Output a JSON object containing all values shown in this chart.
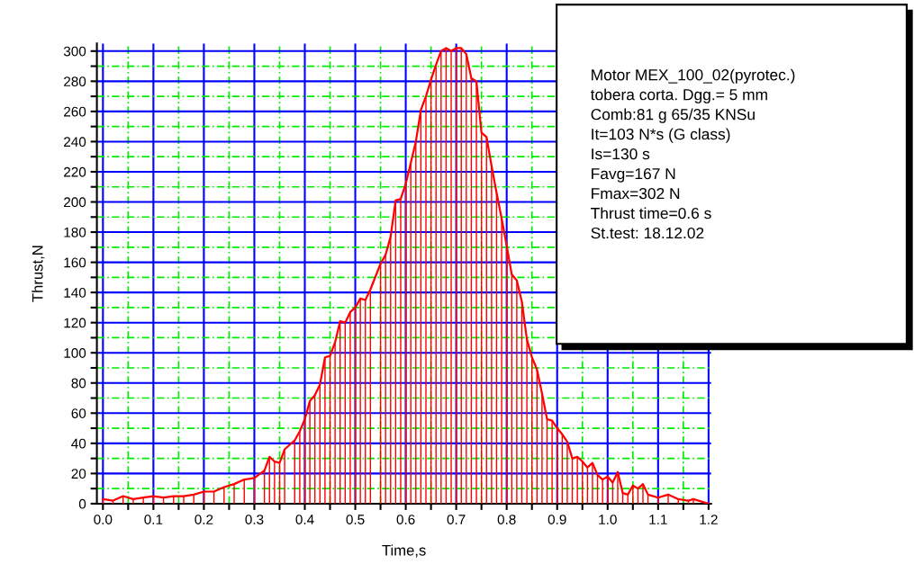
{
  "chart_data": {
    "type": "line",
    "xlabel": "Time,s",
    "ylabel": "Thrust,N",
    "x": [
      0.0,
      0.02,
      0.04,
      0.06,
      0.08,
      0.1,
      0.12,
      0.14,
      0.16,
      0.18,
      0.2,
      0.22,
      0.24,
      0.26,
      0.28,
      0.3,
      0.32,
      0.33,
      0.34,
      0.35,
      0.36,
      0.38,
      0.39,
      0.4,
      0.41,
      0.42,
      0.43,
      0.44,
      0.45,
      0.46,
      0.47,
      0.48,
      0.49,
      0.5,
      0.51,
      0.52,
      0.53,
      0.55,
      0.56,
      0.57,
      0.58,
      0.59,
      0.6,
      0.61,
      0.62,
      0.63,
      0.64,
      0.65,
      0.66,
      0.67,
      0.68,
      0.69,
      0.7,
      0.71,
      0.72,
      0.73,
      0.74,
      0.75,
      0.76,
      0.77,
      0.78,
      0.79,
      0.8,
      0.81,
      0.82,
      0.83,
      0.84,
      0.85,
      0.86,
      0.87,
      0.88,
      0.89,
      0.9,
      0.91,
      0.92,
      0.93,
      0.94,
      0.95,
      0.96,
      0.97,
      0.98,
      0.99,
      1.0,
      1.01,
      1.02,
      1.03,
      1.04,
      1.05,
      1.06,
      1.07,
      1.08,
      1.1,
      1.12,
      1.14,
      1.16,
      1.17,
      1.2
    ],
    "series": [
      {
        "color": "#ff0000",
        "values": [
          3,
          2,
          5,
          3,
          4,
          5,
          4,
          5,
          5,
          6,
          8,
          8,
          11,
          13,
          16,
          17,
          22,
          31,
          28,
          27,
          36,
          42,
          48,
          56,
          68,
          72,
          79,
          97,
          98,
          107,
          121,
          120,
          127,
          130,
          136,
          135,
          142,
          159,
          165,
          177,
          201,
          202,
          212,
          226,
          240,
          261,
          270,
          281,
          291,
          300,
          302,
          300,
          302,
          302,
          298,
          282,
          280,
          246,
          243,
          224,
          206,
          189,
          171,
          152,
          148,
          134,
          109,
          97,
          89,
          73,
          56,
          55,
          50,
          46,
          41,
          30,
          31,
          28,
          24,
          27,
          19,
          16,
          18,
          14,
          21,
          7,
          6,
          12,
          10,
          13,
          6,
          4,
          6,
          3,
          2,
          3,
          0
        ]
      },
      {
        "type": "bar",
        "color": "#ff0000",
        "values": [
          3,
          2,
          5,
          3,
          4,
          5,
          4,
          5,
          5,
          6,
          8,
          8,
          11,
          13,
          16,
          17,
          22,
          31,
          28,
          27,
          36,
          42,
          48,
          56,
          68,
          72,
          79,
          97,
          98,
          107,
          121,
          120,
          127,
          130,
          136,
          135,
          142,
          159,
          165,
          177,
          201,
          202,
          212,
          226,
          240,
          261,
          270,
          281,
          291,
          300,
          302,
          300,
          302,
          302,
          298,
          282,
          280,
          246,
          243,
          224,
          206,
          189,
          171,
          152,
          148,
          134,
          109,
          97,
          89,
          73,
          56,
          55,
          50,
          46,
          41,
          30,
          31,
          28,
          24,
          27,
          19,
          16,
          18,
          14,
          21,
          7,
          6,
          12,
          10,
          13,
          6,
          4,
          6,
          3,
          2,
          3,
          0
        ]
      }
    ],
    "marker": "none",
    "line_style": "solid",
    "grid": true,
    "xlim": [
      -0.012,
      1.205
    ],
    "ylim": [
      0,
      305
    ],
    "xticks": [
      {
        "value": 0.0,
        "label": "0.0"
      },
      {
        "value": 0.05,
        "label": null
      },
      {
        "value": 0.1,
        "label": "0.1"
      },
      {
        "value": 0.15,
        "label": null
      },
      {
        "value": 0.2,
        "label": "0.2"
      },
      {
        "value": 0.25,
        "label": null
      },
      {
        "value": 0.3,
        "label": "0.3"
      },
      {
        "value": 0.35,
        "label": null
      },
      {
        "value": 0.4,
        "label": "0.4"
      },
      {
        "value": 0.45,
        "label": null
      },
      {
        "value": 0.5,
        "label": "0.5"
      },
      {
        "value": 0.55,
        "label": null
      },
      {
        "value": 0.6,
        "label": "0.6"
      },
      {
        "value": 0.65,
        "label": null
      },
      {
        "value": 0.7,
        "label": "0.7"
      },
      {
        "value": 0.75,
        "label": null
      },
      {
        "value": 0.8,
        "label": "0.8"
      },
      {
        "value": 0.85,
        "label": null
      },
      {
        "value": 0.9,
        "label": "0.9"
      },
      {
        "value": 0.95,
        "label": null
      },
      {
        "value": 1.0,
        "label": "1.0"
      },
      {
        "value": 1.05,
        "label": null
      },
      {
        "value": 1.1,
        "label": "1.1"
      },
      {
        "value": 1.15,
        "label": null
      },
      {
        "value": 1.2,
        "label": "1.2"
      }
    ],
    "yticks": [
      0,
      {
        "value": 10,
        "label": null
      },
      20,
      {
        "value": 30,
        "label": null
      },
      40,
      {
        "value": 50,
        "label": null
      },
      60,
      {
        "value": 70,
        "label": null
      },
      80,
      {
        "value": 90,
        "label": null
      },
      100,
      {
        "value": 110,
        "label": null
      },
      120,
      {
        "value": 130,
        "label": null
      },
      140,
      {
        "value": 150,
        "label": null
      },
      160,
      {
        "value": 170,
        "label": null
      },
      180,
      {
        "value": 190,
        "label": null
      },
      200,
      {
        "value": 210,
        "label": null
      },
      220,
      {
        "value": 230,
        "label": null
      },
      240,
      {
        "value": 250,
        "label": null
      },
      260,
      {
        "value": 270,
        "label": null
      },
      280,
      {
        "value": 290,
        "label": null
      },
      300
    ],
    "annotations": [
      "Motor MEX_100_02(pyrotec.)",
      "tobera corta. Dgg.= 5 mm",
      "Comb:81 g 65/35 KNSu",
      "It=103 N*s (G class)",
      "Is=130 s",
      "Favg=167 N",
      "Fmax=302 N",
      "Thrust time=0.6 s",
      "St.test: 18.12.02"
    ]
  }
}
